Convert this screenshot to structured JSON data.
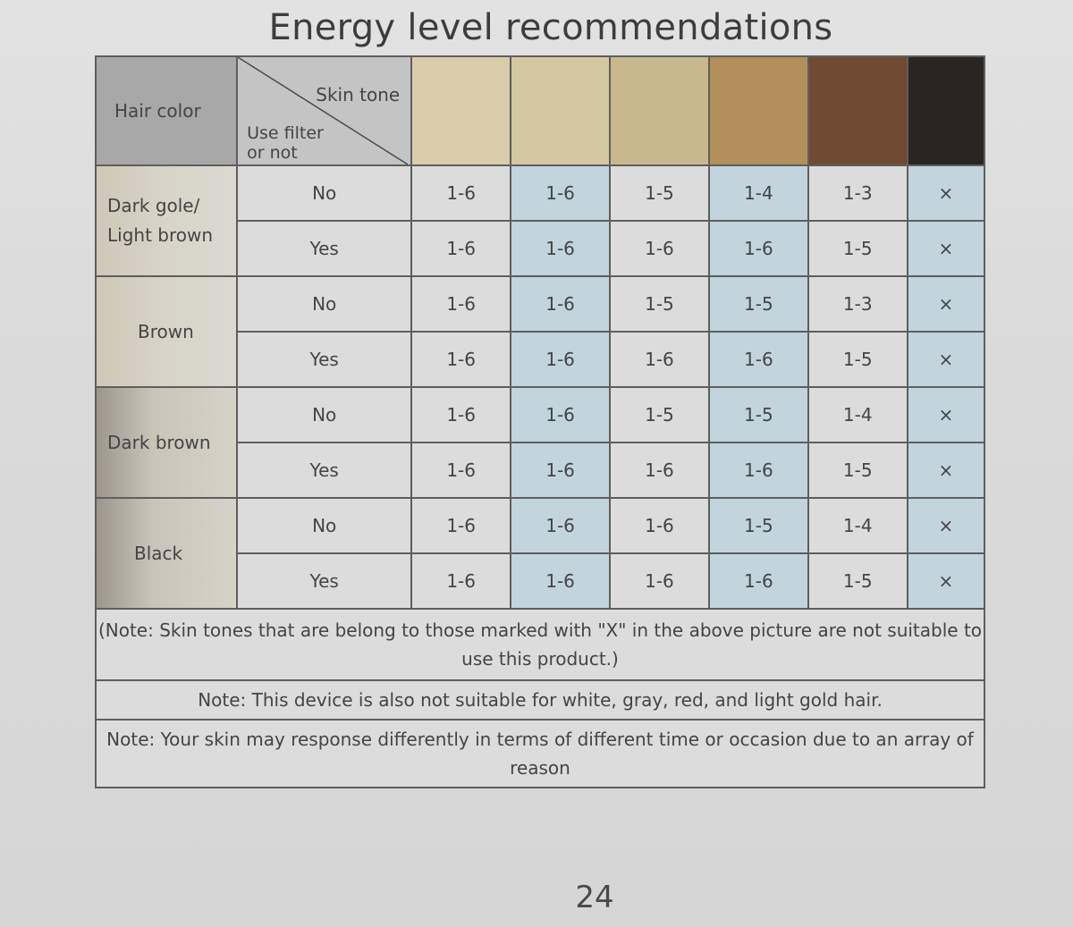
{
  "title": "Energy level recommendations",
  "header": {
    "hair_color": "Hair color",
    "skin_tone": "Skin tone",
    "use_filter_line1": "Use filter",
    "use_filter_line2": "or not"
  },
  "skin_tone_colors": [
    "#d9ccaa",
    "#d4c8a2",
    "#c9b78e",
    "#b38f5c",
    "#704a33",
    "#2a2523"
  ],
  "rows": [
    {
      "hair": "Dark gole/ Light brown",
      "filter": "No",
      "values": [
        "1-6",
        "1-6",
        "1-5",
        "1-4",
        "1-3",
        "×"
      ]
    },
    {
      "hair": "",
      "filter": "Yes",
      "values": [
        "1-6",
        "1-6",
        "1-6",
        "1-6",
        "1-5",
        "×"
      ]
    },
    {
      "hair": "Brown",
      "filter": "No",
      "values": [
        "1-6",
        "1-6",
        "1-5",
        "1-5",
        "1-3",
        "×"
      ]
    },
    {
      "hair": "",
      "filter": "Yes",
      "values": [
        "1-6",
        "1-6",
        "1-6",
        "1-6",
        "1-5",
        "×"
      ]
    },
    {
      "hair": "Dark brown",
      "filter": "No",
      "values": [
        "1-6",
        "1-6",
        "1-5",
        "1-5",
        "1-4",
        "×"
      ]
    },
    {
      "hair": "",
      "filter": "Yes",
      "values": [
        "1-6",
        "1-6",
        "1-6",
        "1-6",
        "1-5",
        "×"
      ]
    },
    {
      "hair": "Black",
      "filter": "No",
      "values": [
        "1-6",
        "1-6",
        "1-6",
        "1-5",
        "1-4",
        "×"
      ]
    },
    {
      "hair": "",
      "filter": "Yes",
      "values": [
        "1-6",
        "1-6",
        "1-6",
        "1-6",
        "1-5",
        "×"
      ]
    }
  ],
  "hair_labels": {
    "dark_gold_line1": "Dark gole/",
    "dark_gold_line2": "Light brown",
    "brown": "Brown",
    "dark_brown": "Dark brown",
    "black": "Black"
  },
  "notes": [
    "(Note: Skin tones that are belong to those marked with \"X\" in the above picture are not suitable to use this product.)",
    "Note: This device is also not suitable for white, gray, red, and light gold hair.",
    "Note: Your skin may response differently in terms of different time or occasion due to an array of reason"
  ],
  "page_number": "24"
}
